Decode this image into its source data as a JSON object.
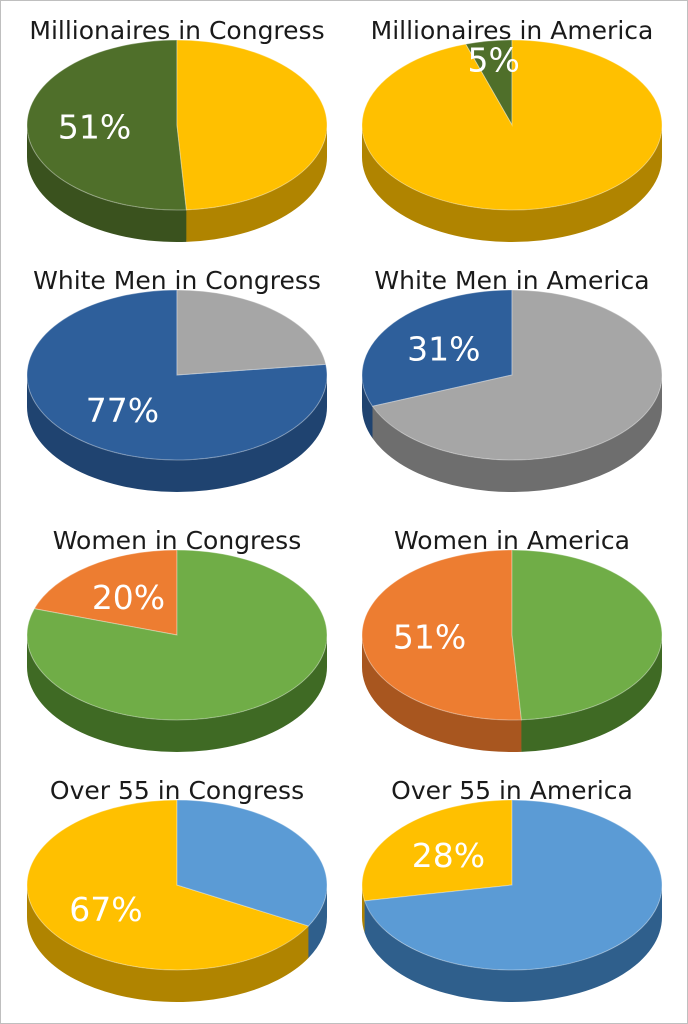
{
  "chart_data": [
    {
      "type": "pie",
      "title": "Millionaires in Congress",
      "slices": [
        {
          "name": "",
          "value": 51,
          "label": "51%",
          "color": "#4f6f2a",
          "shade": "#3a521e"
        },
        {
          "name": "",
          "value": 49,
          "label": "",
          "color": "#ffc000",
          "shade": "#b08400"
        }
      ]
    },
    {
      "type": "pie",
      "title": "Millionaires in America",
      "slices": [
        {
          "name": "",
          "value": 5,
          "label": "5%",
          "color": "#4f6f2a",
          "shade": "#3a521e"
        },
        {
          "name": "",
          "value": 95,
          "label": "",
          "color": "#ffc000",
          "shade": "#b08400"
        }
      ]
    },
    {
      "type": "pie",
      "title": "White Men in Congress",
      "slices": [
        {
          "name": "",
          "value": 77,
          "label": "77%",
          "color": "#2e5f9b",
          "shade": "#1f4370"
        },
        {
          "name": "",
          "value": 23,
          "label": "",
          "color": "#a6a6a6",
          "shade": "#6e6e6e"
        }
      ]
    },
    {
      "type": "pie",
      "title": "White Men in America",
      "slices": [
        {
          "name": "",
          "value": 31,
          "label": "31%",
          "color": "#2e5f9b",
          "shade": "#1f4370"
        },
        {
          "name": "",
          "value": 69,
          "label": "",
          "color": "#a6a6a6",
          "shade": "#6e6e6e"
        }
      ]
    },
    {
      "type": "pie",
      "title": "Women in Congress",
      "slices": [
        {
          "name": "",
          "value": 20,
          "label": "20%",
          "color": "#ed7d31",
          "shade": "#a8561f"
        },
        {
          "name": "",
          "value": 80,
          "label": "",
          "color": "#70ad47",
          "shade": "#3f6a24"
        }
      ]
    },
    {
      "type": "pie",
      "title": "Women in America",
      "slices": [
        {
          "name": "",
          "value": 51,
          "label": "51%",
          "color": "#ed7d31",
          "shade": "#a8561f"
        },
        {
          "name": "",
          "value": 49,
          "label": "",
          "color": "#70ad47",
          "shade": "#3f6a24"
        }
      ]
    },
    {
      "type": "pie",
      "title": "Over 55 in Congress",
      "slices": [
        {
          "name": "",
          "value": 67,
          "label": "67%",
          "color": "#ffc000",
          "shade": "#b08400"
        },
        {
          "name": "",
          "value": 33,
          "label": "",
          "color": "#5b9bd5",
          "shade": "#2f5f8c"
        }
      ]
    },
    {
      "type": "pie",
      "title": "Over 55 in America",
      "slices": [
        {
          "name": "",
          "value": 28,
          "label": "28%",
          "color": "#ffc000",
          "shade": "#b08400"
        },
        {
          "name": "",
          "value": 72,
          "label": "",
          "color": "#5b9bd5",
          "shade": "#2f5f8c"
        }
      ]
    }
  ]
}
